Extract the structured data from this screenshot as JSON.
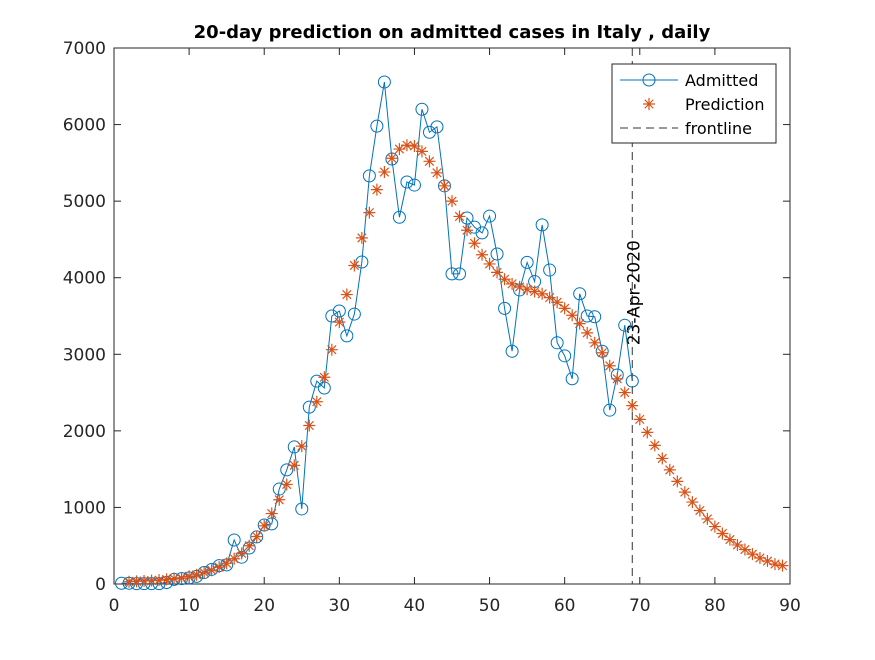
{
  "chart_data": {
    "type": "line",
    "title": "20-day prediction on admitted cases in Italy , daily",
    "series": [
      {
        "name": "Admitted",
        "color": "#0072bd",
        "marker": "circle",
        "line": true,
        "x": [
          1,
          2,
          3,
          4,
          5,
          6,
          7,
          8,
          9,
          10,
          11,
          12,
          13,
          14,
          15,
          16,
          17,
          18,
          19,
          20,
          21,
          22,
          23,
          24,
          25,
          26,
          27,
          28,
          29,
          30,
          31,
          32,
          33,
          34,
          35,
          36,
          37,
          38,
          39,
          40,
          41,
          42,
          43,
          44,
          45,
          46,
          47,
          48,
          49,
          50,
          51,
          52,
          53,
          54,
          55,
          56,
          57,
          58,
          59,
          60,
          61,
          62,
          63,
          64,
          65,
          66,
          67,
          68,
          69
        ],
        "values": [
          10,
          10,
          5,
          5,
          5,
          5,
          20,
          60,
          70,
          80,
          100,
          150,
          190,
          240,
          250,
          575,
          350,
          470,
          615,
          770,
          785,
          1240,
          1490,
          1790,
          980,
          2310,
          2650,
          2560,
          3500,
          3565,
          3240,
          3525,
          4205,
          5330,
          5980,
          6556,
          5550,
          4790,
          5250,
          5210,
          6200,
          5900,
          5970,
          5200,
          4050,
          4050,
          4780,
          4660,
          4585,
          4805,
          4310,
          3600,
          3040,
          3840,
          4200,
          3950,
          4690,
          4100,
          3150,
          2980,
          2680,
          3790,
          3500,
          3490,
          3040,
          2270,
          2730,
          3380,
          2650
        ]
      },
      {
        "name": "Prediction",
        "color": "#d95319",
        "marker": "star",
        "line": false,
        "x": [
          2,
          3,
          4,
          5,
          6,
          7,
          8,
          9,
          10,
          11,
          12,
          13,
          14,
          15,
          16,
          17,
          18,
          19,
          20,
          21,
          22,
          23,
          24,
          25,
          26,
          27,
          28,
          29,
          30,
          31,
          32,
          33,
          34,
          35,
          36,
          37,
          38,
          39,
          40,
          41,
          42,
          43,
          44,
          45,
          46,
          47,
          48,
          49,
          50,
          51,
          52,
          53,
          54,
          55,
          56,
          57,
          58,
          59,
          60,
          61,
          62,
          63,
          64,
          65,
          66,
          67,
          68,
          69,
          70,
          71,
          72,
          73,
          74,
          75,
          76,
          77,
          78,
          79,
          80,
          81,
          82,
          83,
          84,
          85,
          86,
          87,
          88,
          89
        ],
        "values": [
          30,
          35,
          40,
          45,
          50,
          60,
          70,
          80,
          100,
          120,
          150,
          180,
          220,
          270,
          330,
          400,
          500,
          620,
          760,
          920,
          1100,
          1300,
          1550,
          1800,
          2070,
          2380,
          2700,
          3060,
          3420,
          3780,
          4160,
          4520,
          4850,
          5150,
          5380,
          5560,
          5680,
          5730,
          5720,
          5650,
          5520,
          5370,
          5200,
          5000,
          4800,
          4620,
          4450,
          4300,
          4180,
          4070,
          3980,
          3920,
          3880,
          3850,
          3820,
          3790,
          3740,
          3680,
          3600,
          3510,
          3400,
          3280,
          3150,
          3020,
          2850,
          2680,
          2500,
          2330,
          2150,
          1980,
          1810,
          1640,
          1490,
          1340,
          1200,
          1070,
          960,
          850,
          750,
          660,
          580,
          510,
          450,
          390,
          340,
          300,
          260,
          240
        ]
      }
    ],
    "vline": {
      "name": "frontline",
      "x": 69,
      "label": "23-Apr-2020",
      "color": "#333333"
    },
    "xlim": [
      0,
      90
    ],
    "xticks": [
      0,
      10,
      20,
      30,
      40,
      50,
      60,
      70,
      80,
      90
    ],
    "ylim": [
      0,
      7000
    ],
    "yticks": [
      0,
      1000,
      2000,
      3000,
      4000,
      5000,
      6000,
      7000
    ],
    "grid": false,
    "legend": "northeast"
  }
}
